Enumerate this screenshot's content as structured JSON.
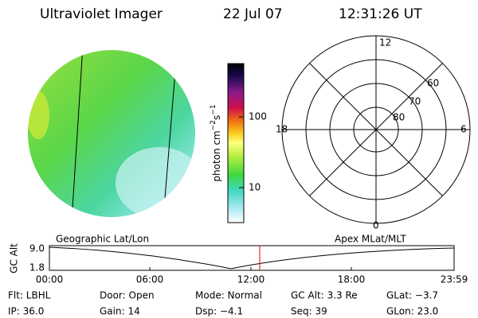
{
  "header": {
    "instrument": "Ultraviolet Imager",
    "date": "22 Jul 07",
    "time": "12:31:26 UT"
  },
  "colorbar": {
    "unit": [
      "photon cm",
      "−2",
      "s",
      "−1"
    ],
    "ticks": [
      "100",
      "10"
    ]
  },
  "polar": {
    "mlt_labels": {
      "top": "12",
      "left": "18",
      "right": "6",
      "bottom": "0"
    },
    "lat_labels": [
      "60",
      "70",
      "80"
    ]
  },
  "timeline": {
    "left_title": "Geographic Lat/Lon",
    "right_title": "Apex MLat/MLT",
    "y_axis_label": "GC Alt",
    "y_ticks": [
      "9.0",
      "1.8"
    ],
    "x_ticks": [
      "00:00",
      "06:00",
      "12:00",
      "18:00",
      "23:59"
    ]
  },
  "footer": {
    "rows": [
      [
        "Flt: LBHL",
        "Door: Open",
        "Mode: Normal",
        "GC Alt: 3.3 Re",
        "GLat: −3.7"
      ],
      [
        "IP: 36.0",
        "Gain: 14",
        "Dsp: −4.1",
        "Seq: 39",
        "GLon: 23.0"
      ]
    ]
  }
}
